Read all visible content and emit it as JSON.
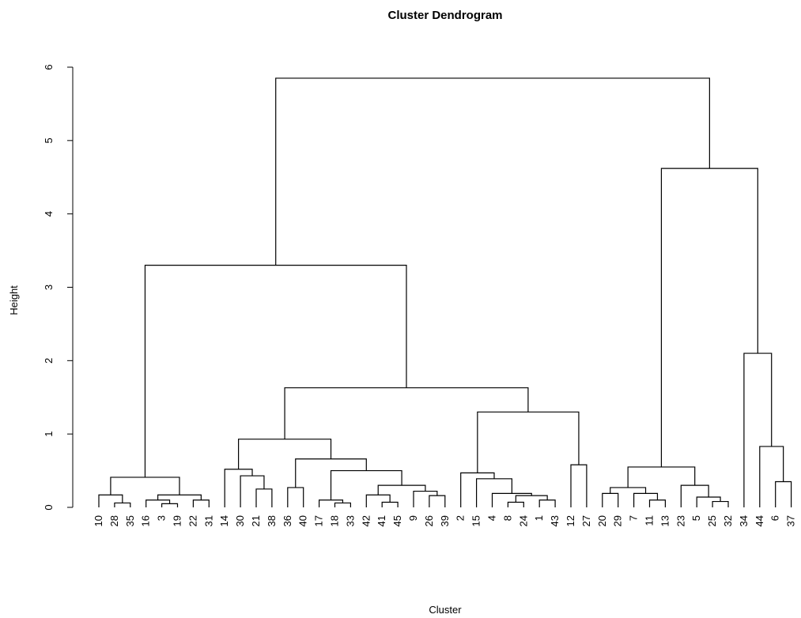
{
  "chart_data": {
    "type": "dendrogram",
    "title": "Cluster Dendrogram",
    "x_label": "Cluster",
    "y_label": "Height",
    "ylim": [
      0,
      6
    ],
    "yticks": [
      0,
      1,
      2,
      3,
      4,
      5,
      6
    ],
    "color": "#000000",
    "tree": {
      "height": 5.85,
      "children": [
        {
          "height": 3.3,
          "children": [
            {
              "height": 0.41,
              "children": [
                {
                  "height": 0.17,
                  "children": [
                    "10",
                    {
                      "height": 0.06,
                      "children": [
                        "28",
                        "35"
                      ]
                    }
                  ]
                },
                {
                  "height": 0.17,
                  "children": [
                    {
                      "height": 0.1,
                      "children": [
                        "16",
                        {
                          "height": 0.05,
                          "children": [
                            "3",
                            "19"
                          ]
                        }
                      ]
                    },
                    {
                      "height": 0.1,
                      "children": [
                        "22",
                        "31"
                      ]
                    }
                  ]
                }
              ]
            },
            {
              "height": 1.63,
              "children": [
                {
                  "height": 0.93,
                  "children": [
                    {
                      "height": 0.52,
                      "children": [
                        "14",
                        {
                          "height": 0.43,
                          "children": [
                            "30",
                            {
                              "height": 0.25,
                              "children": [
                                "21",
                                "38"
                              ]
                            }
                          ]
                        }
                      ]
                    },
                    {
                      "height": 0.66,
                      "children": [
                        {
                          "height": 0.27,
                          "children": [
                            "36",
                            "40"
                          ]
                        },
                        {
                          "height": 0.5,
                          "children": [
                            {
                              "height": 0.1,
                              "children": [
                                "17",
                                {
                                  "height": 0.06,
                                  "children": [
                                    "18",
                                    "33"
                                  ]
                                }
                              ]
                            },
                            {
                              "height": 0.3,
                              "children": [
                                {
                                  "height": 0.17,
                                  "children": [
                                    "42",
                                    {
                                      "height": 0.07,
                                      "children": [
                                        "41",
                                        "45"
                                      ]
                                    }
                                  ]
                                },
                                {
                                  "height": 0.22,
                                  "children": [
                                    "9",
                                    {
                                      "height": 0.16,
                                      "children": [
                                        "26",
                                        "39"
                                      ]
                                    }
                                  ]
                                }
                              ]
                            }
                          ]
                        }
                      ]
                    }
                  ]
                },
                {
                  "height": 1.3,
                  "children": [
                    {
                      "height": 0.47,
                      "children": [
                        "2",
                        {
                          "height": 0.39,
                          "children": [
                            "15",
                            {
                              "height": 0.19,
                              "children": [
                                "4",
                                {
                                  "height": 0.16,
                                  "children": [
                                    {
                                      "height": 0.07,
                                      "children": [
                                        "8",
                                        "24"
                                      ]
                                    },
                                    {
                                      "height": 0.1,
                                      "children": [
                                        "1",
                                        "43"
                                      ]
                                    }
                                  ]
                                }
                              ]
                            }
                          ]
                        }
                      ]
                    },
                    {
                      "height": 0.58,
                      "children": [
                        "12",
                        "27"
                      ]
                    }
                  ]
                }
              ]
            }
          ]
        },
        {
          "height": 4.62,
          "children": [
            {
              "height": 0.55,
              "children": [
                {
                  "height": 0.27,
                  "children": [
                    {
                      "height": 0.19,
                      "children": [
                        "20",
                        "29"
                      ]
                    },
                    {
                      "height": 0.19,
                      "children": [
                        "7",
                        {
                          "height": 0.1,
                          "children": [
                            "11",
                            "13"
                          ]
                        }
                      ]
                    }
                  ]
                },
                {
                  "height": 0.3,
                  "children": [
                    "23",
                    {
                      "height": 0.14,
                      "children": [
                        "5",
                        {
                          "height": 0.08,
                          "children": [
                            "25",
                            "32"
                          ]
                        }
                      ]
                    }
                  ]
                }
              ]
            },
            {
              "height": 2.1,
              "children": [
                "34",
                {
                  "height": 0.83,
                  "children": [
                    "44",
                    {
                      "height": 0.35,
                      "children": [
                        "6",
                        "37"
                      ]
                    }
                  ]
                }
              ]
            }
          ]
        }
      ]
    }
  }
}
